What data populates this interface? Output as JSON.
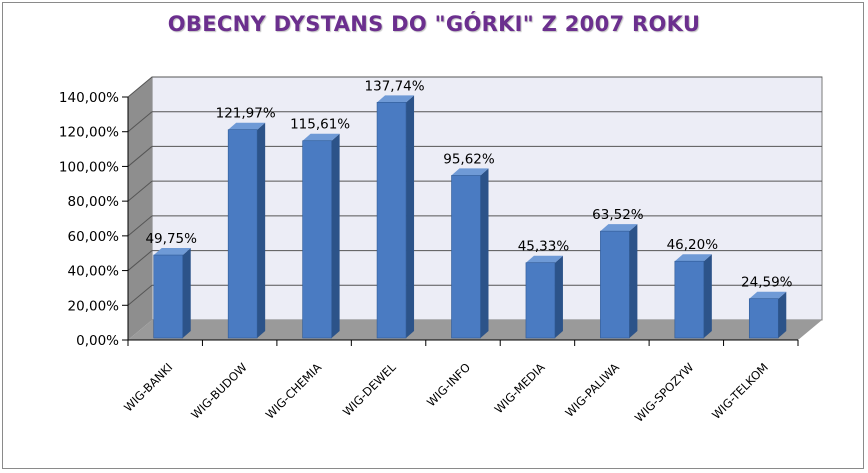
{
  "chart_data": {
    "type": "bar",
    "title": "OBECNY DYSTANS DO \"GÓRKI\" Z 2007 ROKU",
    "categories": [
      "WIG-BANKI",
      "WIG-BUDOW",
      "WIG-CHEMIA",
      "WIG-DEWEL",
      "WIG-INFO",
      "WIG-MEDIA",
      "WIG-PALIWA",
      "WIG-SPOZYW",
      "WIG-TELKOM"
    ],
    "values": [
      49.75,
      121.97,
      115.61,
      137.74,
      95.62,
      45.33,
      63.52,
      46.2,
      24.59
    ],
    "value_labels": [
      "49,75%",
      "121,97%",
      "115,61%",
      "137,74%",
      "95,62%",
      "45,33%",
      "63,52%",
      "46,20%",
      "24,59%"
    ],
    "y_ticks": [
      0,
      20,
      40,
      60,
      80,
      100,
      120,
      140
    ],
    "y_tick_labels": [
      "0,00%",
      "20,00%",
      "40,00%",
      "60,00%",
      "80,00%",
      "100,00%",
      "120,00%",
      "140,00%"
    ],
    "ylim": [
      0,
      140
    ],
    "xlabel": "",
    "ylabel": "",
    "grid": true,
    "legend": false,
    "colors": {
      "bar_front": "#4a7bc2",
      "bar_side": "#2c5389",
      "bar_top": "#6f9ad6",
      "plot_back": "#ecedf6",
      "plot_wall": "#8e8e8e",
      "plot_floor": "#9a9a9a",
      "title": "#6b2f8e"
    }
  }
}
